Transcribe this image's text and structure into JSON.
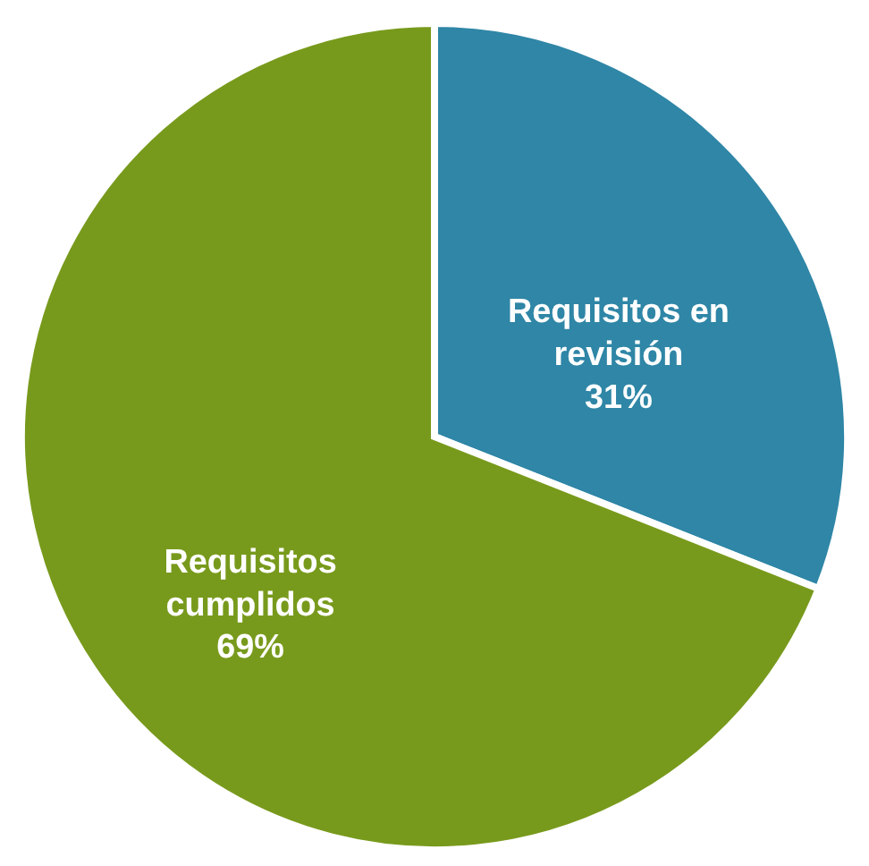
{
  "chart_data": {
    "type": "pie",
    "categories": [
      "Requisitos en revisión",
      "Requisitos cumplidos"
    ],
    "values": [
      31,
      69
    ],
    "colors": [
      "#2f86a6",
      "#789a1c"
    ],
    "value_labels": [
      "31%",
      "69%"
    ],
    "legend": false
  }
}
